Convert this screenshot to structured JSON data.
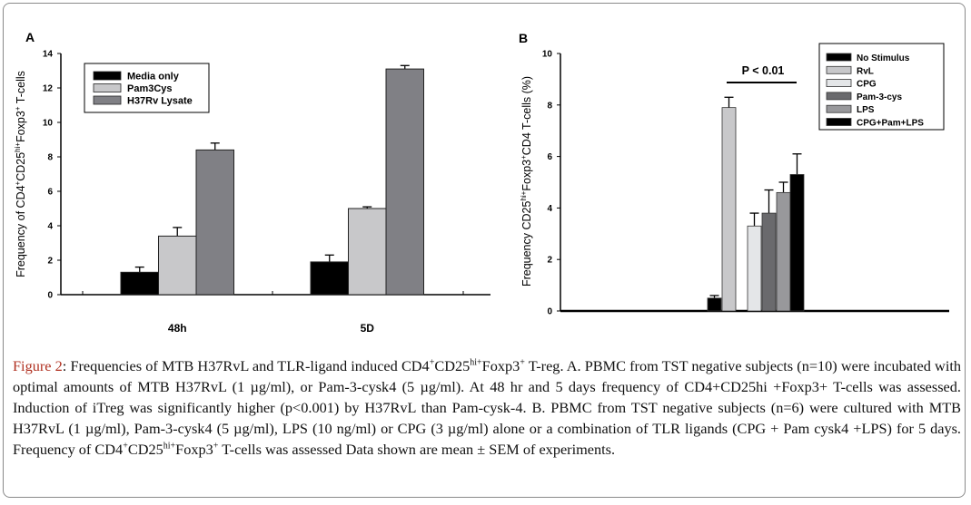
{
  "chart_data": [
    {
      "type": "bar",
      "panel_label": "A",
      "title": "",
      "xlabel": "",
      "ylabel_parts": [
        "Frequency of CD4",
        "+",
        "CD25",
        "hi+",
        "Foxp3",
        "+",
        " T-cells"
      ],
      "categories": [
        "48h",
        "5D"
      ],
      "ylim": [
        0,
        14
      ],
      "yticks": [
        "0",
        "2",
        "4",
        "6",
        "8",
        "10",
        "12",
        "14"
      ],
      "legend_position": "top-left",
      "series": [
        {
          "name": "Media only",
          "color": "#000000",
          "values": [
            1.3,
            1.9
          ],
          "errors": [
            0.3,
            0.4
          ]
        },
        {
          "name": "Pam3Cys",
          "color": "#c8c8ca",
          "values": [
            3.4,
            5.0
          ],
          "errors": [
            0.5,
            0.1
          ]
        },
        {
          "name": "H37Rv Lysate",
          "color": "#808085",
          "values": [
            8.4,
            13.1
          ],
          "errors": [
            0.4,
            0.2
          ]
        }
      ]
    },
    {
      "type": "bar",
      "panel_label": "B",
      "title": "",
      "xlabel": "",
      "ylabel_parts": [
        "Frequency CD25",
        "hi+",
        "Foxp3",
        "+",
        "CD4 T-cells (%)"
      ],
      "ylim": [
        0,
        10
      ],
      "yticks": [
        "0",
        "2",
        "4",
        "6",
        "8",
        "10"
      ],
      "legend_position": "top-right",
      "annotation": "P < 0.01",
      "series": [
        {
          "name": "No Stimulus",
          "color": "#000000",
          "values": [
            0.5
          ],
          "errors": [
            0.1
          ]
        },
        {
          "name": "RvL",
          "color": "#c8c8ca",
          "values": [
            7.9
          ],
          "errors": [
            0.4
          ]
        },
        {
          "name": "CPG",
          "color": "#e4e6e8",
          "values": [
            3.3
          ],
          "errors": [
            0.5
          ]
        },
        {
          "name": "Pam-3-cys",
          "color": "#6a6a6d",
          "values": [
            3.8
          ],
          "errors": [
            0.9
          ]
        },
        {
          "name": "LPS",
          "color": "#98989b",
          "values": [
            4.6
          ],
          "errors": [
            0.4
          ]
        },
        {
          "name": "CPG+Pam+LPS",
          "color": "#000000",
          "values": [
            5.3
          ],
          "errors": [
            0.8
          ]
        }
      ]
    }
  ],
  "caption": {
    "label": "Figure 2",
    "parts": [
      ": Frequencies of MTB H37RvL and TLR-ligand induced CD4",
      "+",
      "CD25",
      "hi+",
      "Foxp3",
      "+",
      " T-reg. A. PBMC from TST negative subjects (n=10) were incubated with optimal amounts of MTB H37RvL (1 µg/ml), or Pam-3-cysk4 (5 µg/ml). At 48 hr and 5 days frequency of CD4+CD25hi +Foxp3+ T-cells was assessed. Induction of iTreg was significantly higher (p<0.001) by H37RvL than Pam-cysk-4. B. PBMC from TST negative subjects (n=6) were cultured with MTB H37RvL (1 µg/ml), Pam-3-cysk4 (5 µg/ml), LPS (10 ng/ml) or CPG (3 µg/ml) alone or a combination of TLR ligands (CPG + Pam cysk4 +LPS) for 5 days. Frequency of CD4",
      "+",
      "CD25",
      "hi+",
      "Foxp3",
      "+",
      " T-cells was assessed Data shown are mean ± SEM of experiments."
    ]
  }
}
